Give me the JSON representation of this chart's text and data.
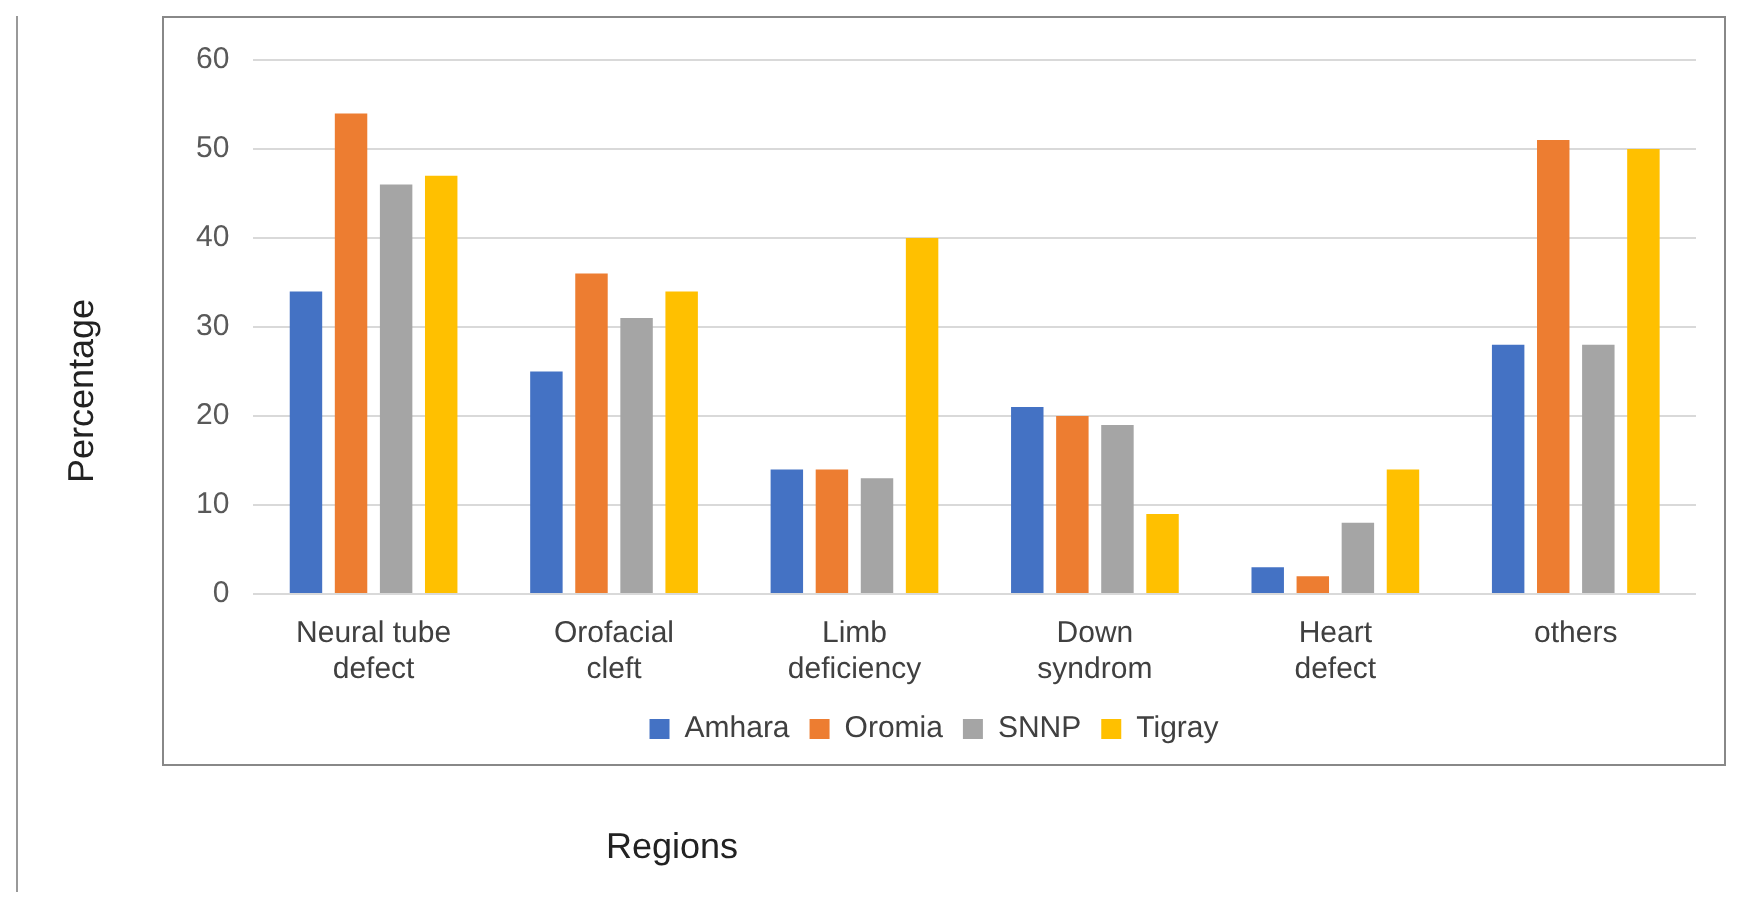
{
  "chart_data": {
    "type": "bar",
    "categories": [
      "Neural tube defect",
      "Orofacial cleft",
      "Limb deficiency",
      "Down syndrom",
      "Heart defect",
      "others"
    ],
    "series": [
      {
        "name": "Amhara",
        "color": "#4472c4",
        "values": [
          34,
          25,
          14,
          21,
          3,
          28
        ]
      },
      {
        "name": "Oromia",
        "color": "#ed7d31",
        "values": [
          54,
          36,
          14,
          20,
          2,
          51
        ]
      },
      {
        "name": "SNNP",
        "color": "#a5a5a5",
        "values": [
          46,
          31,
          13,
          19,
          8,
          28
        ]
      },
      {
        "name": "Tigray",
        "color": "#ffc000",
        "values": [
          47,
          34,
          40,
          9,
          14,
          50
        ]
      }
    ],
    "xlabel": "Regions",
    "ylabel": "Percentage",
    "ylim": [
      0,
      60
    ],
    "yticks": [
      0,
      10,
      20,
      30,
      40,
      50,
      60
    ],
    "grid": "y",
    "legend": "bottom"
  }
}
